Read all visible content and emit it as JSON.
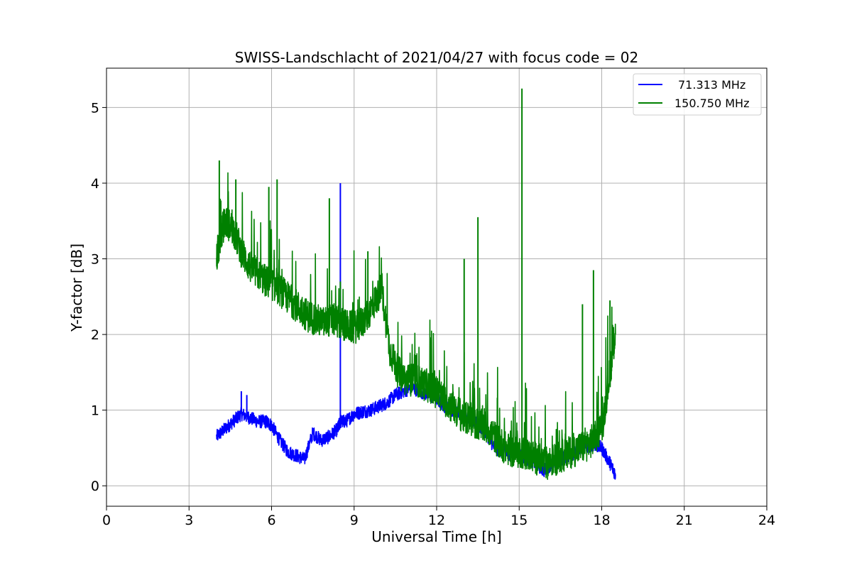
{
  "chart_data": {
    "type": "line",
    "title": "SWISS-Landschlacht of 2021/04/27 with focus code = 02",
    "xlabel": "Universal Time [h]",
    "ylabel": "Y-factor [dB]",
    "xlim": [
      0,
      24
    ],
    "ylim": [
      -0.27,
      5.52
    ],
    "xticks": [
      0,
      3,
      6,
      9,
      12,
      15,
      18,
      21,
      24
    ],
    "yticks": [
      0,
      1,
      2,
      3,
      4,
      5
    ],
    "grid": true,
    "legend_position": "top-right",
    "series": [
      {
        "name": "71.313 MHz",
        "color": "#0000ff",
        "x": [
          4.0,
          4.3,
          4.6,
          4.9,
          5.2,
          5.5,
          5.8,
          6.0,
          6.3,
          6.6,
          6.9,
          7.2,
          7.5,
          7.8,
          8.1,
          8.4,
          8.5,
          8.7,
          9.0,
          9.3,
          9.6,
          9.9,
          10.2,
          10.5,
          10.8,
          11.1,
          11.4,
          11.7,
          12.0,
          12.3,
          12.6,
          12.9,
          13.2,
          13.5,
          13.8,
          14.1,
          14.4,
          14.7,
          15.0,
          15.3,
          15.6,
          15.9,
          16.2,
          16.5,
          16.8,
          17.1,
          17.4,
          17.7,
          18.0,
          18.3,
          18.5
        ],
        "y": [
          0.65,
          0.75,
          0.85,
          0.95,
          0.9,
          0.85,
          0.85,
          0.8,
          0.6,
          0.45,
          0.4,
          0.35,
          0.7,
          0.6,
          0.65,
          0.75,
          0.85,
          0.85,
          0.95,
          0.98,
          1.0,
          1.05,
          1.1,
          1.2,
          1.25,
          1.3,
          1.25,
          1.2,
          1.15,
          1.05,
          1.0,
          0.95,
          0.9,
          0.8,
          0.7,
          0.5,
          0.45,
          0.42,
          0.4,
          0.35,
          0.3,
          0.2,
          0.3,
          0.35,
          0.4,
          0.45,
          0.5,
          0.55,
          0.5,
          0.3,
          0.15
        ],
        "spikes": [
          {
            "x": 8.5,
            "y": 4.0
          },
          {
            "x": 4.9,
            "y": 1.25
          },
          {
            "x": 5.1,
            "y": 1.2
          }
        ]
      },
      {
        "name": "150.750 MHz",
        "color": "#008000",
        "x": [
          4.0,
          4.15,
          4.3,
          4.6,
          4.9,
          5.2,
          5.5,
          5.8,
          6.1,
          6.4,
          6.7,
          7.0,
          7.3,
          7.6,
          7.9,
          8.2,
          8.5,
          8.8,
          9.1,
          9.4,
          9.7,
          10.0,
          10.3,
          10.6,
          10.9,
          11.2,
          11.5,
          11.8,
          12.1,
          12.4,
          12.7,
          13.0,
          13.3,
          13.6,
          13.9,
          14.2,
          14.5,
          14.8,
          15.1,
          15.4,
          15.7,
          16.0,
          16.3,
          16.6,
          16.9,
          17.2,
          17.5,
          17.8,
          18.05,
          18.3,
          18.5
        ],
        "y": [
          3.0,
          3.3,
          3.5,
          3.4,
          3.1,
          2.9,
          2.8,
          2.7,
          2.65,
          2.55,
          2.45,
          2.35,
          2.25,
          2.2,
          2.15,
          2.2,
          2.15,
          2.1,
          2.1,
          2.2,
          2.4,
          2.6,
          1.8,
          1.5,
          1.4,
          1.4,
          1.35,
          1.3,
          1.2,
          1.1,
          1.0,
          0.9,
          0.85,
          0.8,
          0.75,
          0.6,
          0.5,
          0.45,
          0.45,
          0.4,
          0.35,
          0.3,
          0.35,
          0.4,
          0.45,
          0.5,
          0.55,
          0.65,
          0.85,
          1.5,
          2.0
        ],
        "spikes": [
          {
            "x": 4.1,
            "y": 4.3
          },
          {
            "x": 4.7,
            "y": 4.05
          },
          {
            "x": 6.2,
            "y": 4.05
          },
          {
            "x": 5.9,
            "y": 3.95
          },
          {
            "x": 8.1,
            "y": 3.8
          },
          {
            "x": 8.5,
            "y": 2.7
          },
          {
            "x": 9.5,
            "y": 3.1
          },
          {
            "x": 13.5,
            "y": 3.55
          },
          {
            "x": 13.0,
            "y": 3.0
          },
          {
            "x": 15.1,
            "y": 5.25
          },
          {
            "x": 17.7,
            "y": 2.85
          },
          {
            "x": 17.3,
            "y": 2.4
          },
          {
            "x": 18.3,
            "y": 2.45
          }
        ]
      }
    ]
  }
}
